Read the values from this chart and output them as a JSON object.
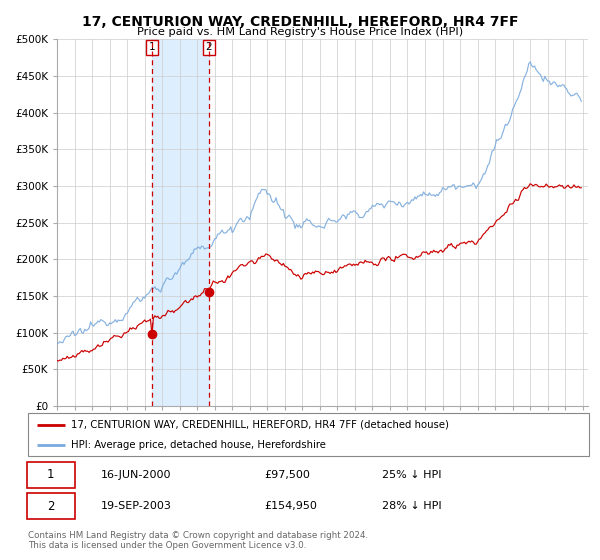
{
  "title": "17, CENTURION WAY, CREDENHILL, HEREFORD, HR4 7FF",
  "subtitle": "Price paid vs. HM Land Registry's House Price Index (HPI)",
  "x_start_year": 1995,
  "x_end_year": 2025,
  "y_min": 0,
  "y_max": 500000,
  "yticks": [
    0,
    50000,
    100000,
    150000,
    200000,
    250000,
    300000,
    350000,
    400000,
    450000,
    500000
  ],
  "ytick_labels": [
    "£0",
    "£50K",
    "£100K",
    "£150K",
    "£200K",
    "£250K",
    "£300K",
    "£350K",
    "£400K",
    "£450K",
    "£500K"
  ],
  "hpi_color": "#7aaadd",
  "price_color": "#cc0000",
  "marker_color": "#cc0000",
  "vline_color": "#cc0000",
  "shade_color": "#ddeeff",
  "transaction1_year": 2000.45,
  "transaction2_year": 2003.72,
  "transaction1_price": 97500,
  "transaction2_price": 154950,
  "legend_label_price": "17, CENTURION WAY, CREDENHILL, HEREFORD, HR4 7FF (detached house)",
  "legend_label_hpi": "HPI: Average price, detached house, Herefordshire",
  "table_row1": [
    "1",
    "16-JUN-2000",
    "£97,500",
    "25% ↓ HPI"
  ],
  "table_row2": [
    "2",
    "19-SEP-2003",
    "£154,950",
    "28% ↓ HPI"
  ],
  "footer": "Contains HM Land Registry data © Crown copyright and database right 2024.\nThis data is licensed under the Open Government Licence v3.0.",
  "background_color": "#ffffff",
  "grid_color": "#cccccc"
}
